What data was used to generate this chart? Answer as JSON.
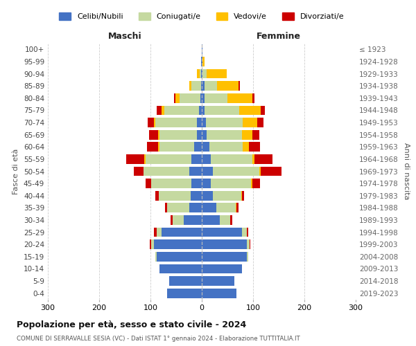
{
  "age_groups": [
    "0-4",
    "5-9",
    "10-14",
    "15-19",
    "20-24",
    "25-29",
    "30-34",
    "35-39",
    "40-44",
    "45-49",
    "50-54",
    "55-59",
    "60-64",
    "65-69",
    "70-74",
    "75-79",
    "80-84",
    "85-89",
    "90-94",
    "95-99",
    "100+"
  ],
  "birth_years": [
    "2019-2023",
    "2014-2018",
    "2009-2013",
    "2004-2008",
    "1999-2003",
    "1994-1998",
    "1989-1993",
    "1984-1988",
    "1979-1983",
    "1974-1978",
    "1969-1973",
    "1964-1968",
    "1959-1963",
    "1954-1958",
    "1949-1953",
    "1944-1948",
    "1939-1943",
    "1934-1938",
    "1929-1933",
    "1924-1928",
    "≤ 1923"
  ],
  "colors": {
    "celibi": "#4472c4",
    "coniugati": "#c5d9a0",
    "vedovi": "#ffc000",
    "divorziati": "#cc0000"
  },
  "maschi": {
    "celibi": [
      68,
      63,
      83,
      88,
      93,
      78,
      35,
      25,
      22,
      20,
      25,
      20,
      15,
      10,
      10,
      5,
      3,
      2,
      1,
      1,
      0
    ],
    "coniugati": [
      0,
      0,
      0,
      2,
      5,
      10,
      22,
      42,
      62,
      78,
      88,
      90,
      68,
      72,
      80,
      68,
      40,
      18,
      3,
      0,
      0
    ],
    "vedovi": [
      0,
      0,
      0,
      0,
      0,
      0,
      0,
      0,
      0,
      0,
      1,
      2,
      2,
      3,
      3,
      5,
      8,
      5,
      5,
      0,
      0
    ],
    "divorziati": [
      0,
      0,
      0,
      0,
      3,
      5,
      4,
      5,
      6,
      12,
      18,
      35,
      22,
      18,
      12,
      10,
      3,
      0,
      0,
      0,
      0
    ]
  },
  "femmine": {
    "celibi": [
      68,
      63,
      78,
      88,
      88,
      78,
      35,
      28,
      22,
      18,
      22,
      18,
      15,
      10,
      8,
      5,
      5,
      5,
      2,
      2,
      1
    ],
    "coniugati": [
      0,
      0,
      0,
      2,
      5,
      10,
      20,
      38,
      55,
      78,
      90,
      80,
      65,
      68,
      72,
      68,
      45,
      25,
      8,
      0,
      0
    ],
    "vedovi": [
      0,
      0,
      0,
      0,
      0,
      0,
      0,
      1,
      1,
      2,
      3,
      5,
      12,
      20,
      28,
      42,
      48,
      42,
      38,
      4,
      1
    ],
    "divorziati": [
      0,
      0,
      0,
      0,
      2,
      3,
      4,
      5,
      5,
      15,
      40,
      35,
      22,
      14,
      12,
      8,
      5,
      2,
      0,
      0,
      0
    ]
  },
  "xlim": 300,
  "title": "Popolazione per età, sesso e stato civile - 2024",
  "subtitle": "COMUNE DI SERRAVALLE SESIA (VC) - Dati ISTAT 1° gennaio 2024 - Elaborazione TUTTITALIA.IT",
  "xlabel_left": "Maschi",
  "xlabel_right": "Femmine",
  "ylabel_left": "Fasce di età",
  "ylabel_right": "Anni di nascita",
  "legend_labels": [
    "Celibi/Nubili",
    "Coniugati/e",
    "Vedovi/e",
    "Divorziati/e"
  ],
  "bg_color": "#ffffff",
  "grid_color": "#c8c8c8"
}
